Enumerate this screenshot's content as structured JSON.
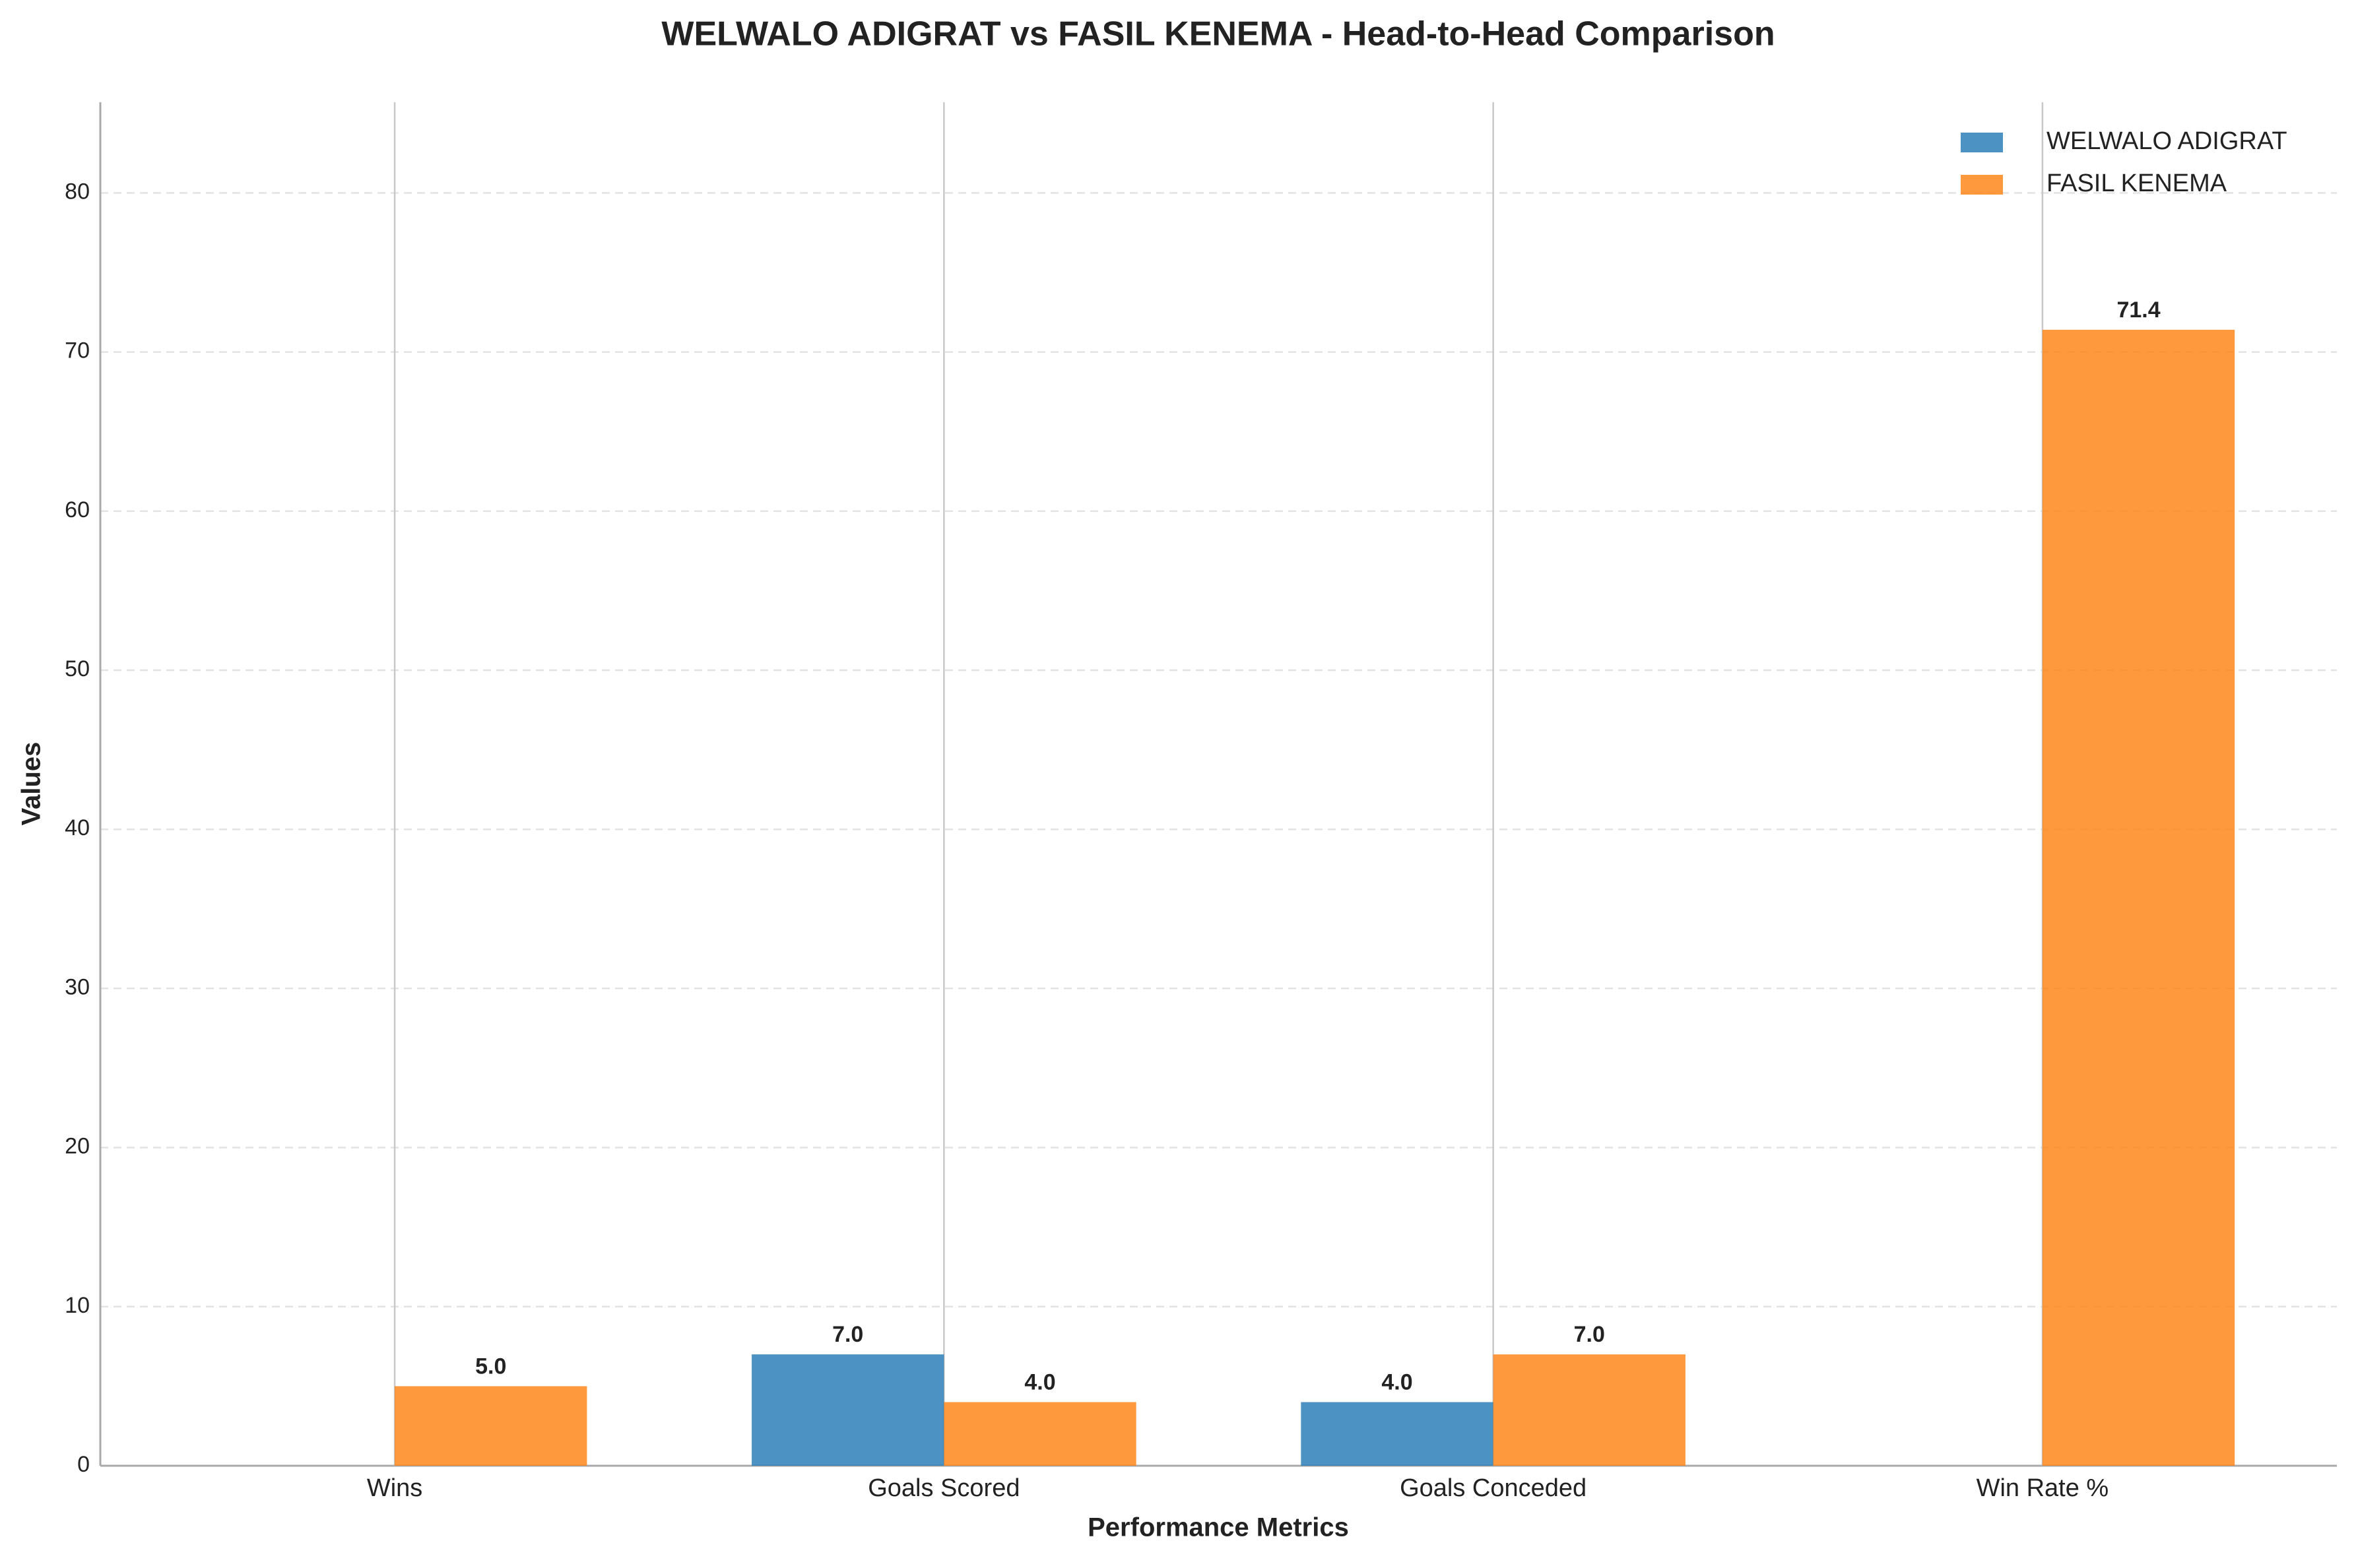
{
  "chart_data": {
    "type": "bar",
    "title": "WELWALO ADIGRAT vs FASIL KENEMA - Head-to-Head Comparison",
    "x_label": "Performance Metrics",
    "y_label": "Values",
    "categories": [
      "Wins",
      "Goals Scored",
      "Goals Conceded",
      "Win Rate %"
    ],
    "series": [
      {
        "name": "WELWALO ADIGRAT",
        "color": "#1f77b4",
        "values": [
          0,
          7,
          4,
          0
        ],
        "value_labels": [
          null,
          "7.0",
          "4.0",
          null
        ]
      },
      {
        "name": "FASIL KENEMA",
        "color": "#ff7f0e",
        "values": [
          5,
          4,
          7,
          71.4
        ],
        "value_labels": [
          "5.0",
          "4.0",
          "7.0",
          "71.4"
        ]
      }
    ],
    "ylim": [
      0,
      85.7
    ],
    "yticks": [
      0,
      10,
      20,
      30,
      40,
      50,
      60,
      70,
      80
    ],
    "grid": true,
    "legend": "upper right"
  }
}
